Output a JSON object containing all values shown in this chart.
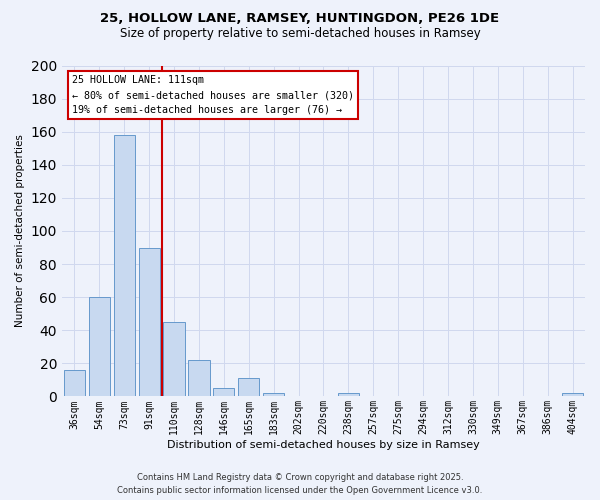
{
  "title1": "25, HOLLOW LANE, RAMSEY, HUNTINGDON, PE26 1DE",
  "title2": "Size of property relative to semi-detached houses in Ramsey",
  "bar_labels": [
    "36sqm",
    "54sqm",
    "73sqm",
    "91sqm",
    "110sqm",
    "128sqm",
    "146sqm",
    "165sqm",
    "183sqm",
    "202sqm",
    "220sqm",
    "238sqm",
    "257sqm",
    "275sqm",
    "294sqm",
    "312sqm",
    "330sqm",
    "349sqm",
    "367sqm",
    "386sqm",
    "404sqm"
  ],
  "bar_values": [
    16,
    60,
    158,
    90,
    45,
    22,
    5,
    11,
    2,
    0,
    0,
    2,
    0,
    0,
    0,
    0,
    0,
    0,
    0,
    0,
    2
  ],
  "bar_color": "#c8d9f0",
  "bar_edge_color": "#6699cc",
  "vline_color": "#cc0000",
  "vline_index": 3.5,
  "annotation_title": "25 HOLLOW LANE: 111sqm",
  "annotation_line1": "← 80% of semi-detached houses are smaller (320)",
  "annotation_line2": "19% of semi-detached houses are larger (76) →",
  "xlabel": "Distribution of semi-detached houses by size in Ramsey",
  "ylabel": "Number of semi-detached properties",
  "ylim": [
    0,
    200
  ],
  "yticks": [
    0,
    20,
    40,
    60,
    80,
    100,
    120,
    140,
    160,
    180,
    200
  ],
  "footer1": "Contains HM Land Registry data © Crown copyright and database right 2025.",
  "footer2": "Contains public sector information licensed under the Open Government Licence v3.0.",
  "bg_color": "#eef2fb",
  "grid_color": "#d0d8ee"
}
